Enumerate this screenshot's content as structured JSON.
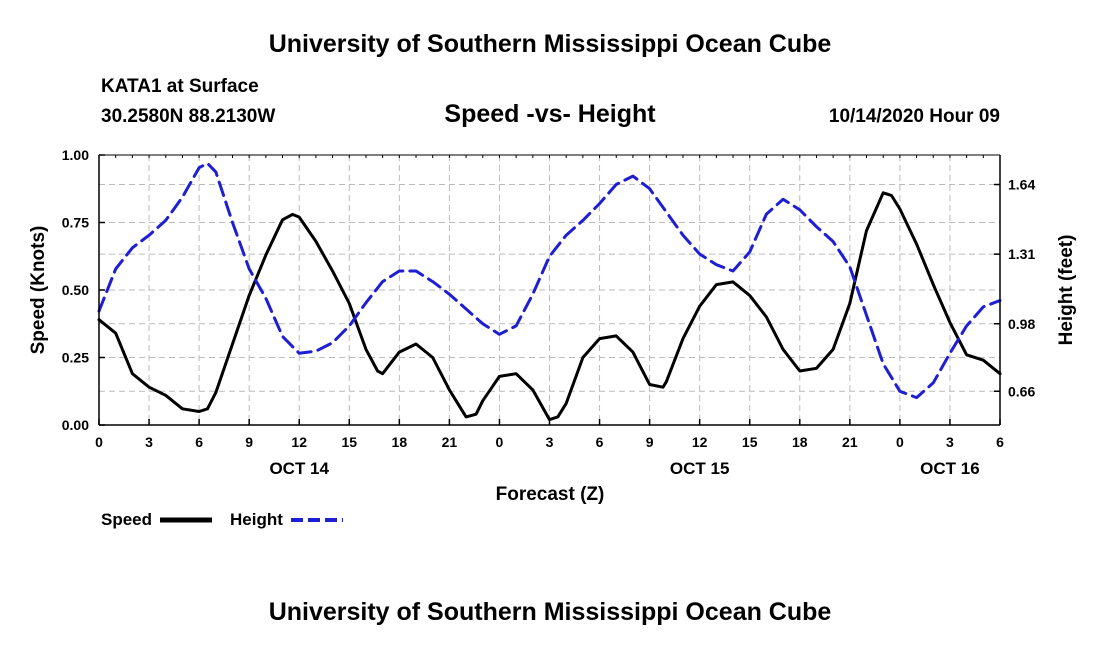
{
  "header": {
    "top_title": "University of Southern Mississippi Ocean Cube",
    "bottom_title": "University of Southern Mississippi Ocean Cube",
    "station": "KATA1 at Surface",
    "coordinates": "30.2580N 88.2130W",
    "chart_title": "Speed -vs- Height",
    "date": "10/14/2020 Hour 09"
  },
  "chart_data": {
    "type": "line",
    "title": "Speed -vs- Height",
    "xlabel": "Forecast (Z)",
    "ylabel": "Speed (Knots)",
    "y2label": "Height (feet)",
    "xlim": [
      0,
      54
    ],
    "ylim": [
      0,
      1.0
    ],
    "y2lim": [
      0.5,
      1.78
    ],
    "x_ticks": [
      0,
      3,
      6,
      9,
      12,
      15,
      18,
      21,
      24,
      27,
      30,
      33,
      36,
      39,
      42,
      45,
      48,
      51,
      54
    ],
    "x_tick_labels": [
      "0",
      "3",
      "6",
      "9",
      "12",
      "15",
      "18",
      "21",
      "0",
      "3",
      "6",
      "9",
      "12",
      "15",
      "18",
      "21",
      "0",
      "3",
      "6"
    ],
    "y_ticks": [
      0,
      0.25,
      0.5,
      0.75,
      1.0
    ],
    "y_tick_labels": [
      "0.00",
      "0.25",
      "0.50",
      "0.75",
      "1.00"
    ],
    "y2_ticks": [
      0.66,
      0.98,
      1.31,
      1.64
    ],
    "y2_tick_labels": [
      "0.66",
      "0.98",
      "1.31",
      "1.64"
    ],
    "day_labels": [
      {
        "x": 12,
        "label": "OCT 14"
      },
      {
        "x": 36,
        "label": "OCT 15"
      },
      {
        "x": 51,
        "label": "OCT 16"
      }
    ],
    "grid": true,
    "legend_position": "bottom-left",
    "series": [
      {
        "name": "Speed",
        "axis": "left",
        "color": "#000000",
        "dash": "solid",
        "x": [
          0,
          1,
          2,
          3,
          4,
          5,
          6,
          6.5,
          7,
          8,
          9,
          10,
          11,
          11.6,
          12,
          13,
          14,
          15,
          16,
          16.7,
          17,
          18,
          19,
          20,
          21,
          22,
          22.6,
          23,
          24,
          25,
          26,
          27,
          27.5,
          28,
          29,
          30,
          31,
          32,
          33,
          33.8,
          34,
          35,
          36,
          37,
          38,
          39,
          40,
          41,
          42,
          43,
          44,
          45,
          46,
          47,
          47.5,
          48,
          49,
          50,
          51,
          52,
          53,
          54
        ],
        "values": [
          0.39,
          0.34,
          0.19,
          0.14,
          0.11,
          0.06,
          0.05,
          0.06,
          0.12,
          0.3,
          0.48,
          0.63,
          0.76,
          0.78,
          0.77,
          0.68,
          0.57,
          0.45,
          0.28,
          0.2,
          0.19,
          0.27,
          0.3,
          0.25,
          0.13,
          0.03,
          0.04,
          0.09,
          0.18,
          0.19,
          0.13,
          0.02,
          0.03,
          0.08,
          0.25,
          0.32,
          0.33,
          0.27,
          0.15,
          0.14,
          0.16,
          0.32,
          0.44,
          0.52,
          0.53,
          0.48,
          0.4,
          0.28,
          0.2,
          0.21,
          0.28,
          0.45,
          0.72,
          0.86,
          0.85,
          0.8,
          0.67,
          0.52,
          0.38,
          0.26,
          0.24,
          0.19
        ]
      },
      {
        "name": "Height",
        "axis": "right",
        "color": "#1e1ed2",
        "dash": "dashed",
        "x": [
          0,
          1,
          2,
          3,
          4,
          5,
          6,
          6.5,
          7,
          8,
          9,
          10,
          11,
          12,
          13,
          14,
          15,
          16,
          17,
          18,
          19,
          20,
          21,
          22,
          23,
          24,
          25,
          26,
          27,
          28,
          29,
          30,
          31,
          32,
          33,
          34,
          35,
          36,
          37,
          38,
          39,
          40,
          41,
          42,
          43,
          44,
          45,
          46,
          47,
          48,
          49,
          50,
          51,
          52,
          53,
          54
        ],
        "values": [
          1.04,
          1.24,
          1.34,
          1.4,
          1.47,
          1.58,
          1.72,
          1.74,
          1.7,
          1.46,
          1.24,
          1.1,
          0.92,
          0.84,
          0.85,
          0.89,
          0.97,
          1.08,
          1.18,
          1.23,
          1.23,
          1.18,
          1.12,
          1.05,
          0.98,
          0.93,
          0.97,
          1.12,
          1.3,
          1.4,
          1.47,
          1.55,
          1.64,
          1.68,
          1.62,
          1.51,
          1.4,
          1.31,
          1.26,
          1.23,
          1.32,
          1.5,
          1.57,
          1.52,
          1.44,
          1.37,
          1.25,
          1.02,
          0.79,
          0.66,
          0.63,
          0.7,
          0.84,
          0.97,
          1.06,
          1.09
        ]
      }
    ]
  }
}
